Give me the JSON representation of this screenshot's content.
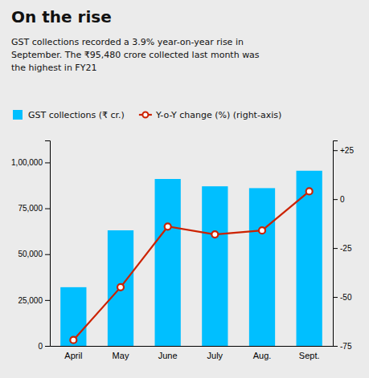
{
  "chart_data": {
    "type": "bar",
    "title": "On the rise",
    "subtitle": "GST collections recorded a 3.9% year-on-year rise in\nSeptember. The ₹95,480 crore collected last month was\nthe highest in FY21",
    "categories": [
      "April",
      "May",
      "June",
      "July",
      "Aug.",
      "Sept."
    ],
    "series": [
      {
        "name": "GST collections (₹ cr.)",
        "type": "bar",
        "color": "#00bfff",
        "values": [
          32000,
          63000,
          91000,
          87000,
          86000,
          95480
        ]
      },
      {
        "name": "Y-o-Y change (%) (right-axis)",
        "type": "line",
        "axis": "y2",
        "color": "#cc2200",
        "marker": "circle",
        "values": [
          -72,
          -45,
          -14,
          -18,
          -16,
          4
        ]
      }
    ],
    "ylim": [
      0,
      112000
    ],
    "yticks": [
      0,
      {
        "value": 25000,
        "label": "25,000"
      },
      {
        "value": 50000,
        "label": "50,000"
      },
      {
        "value": 75000,
        "label": "75,000"
      },
      {
        "value": 100000,
        "label": "1,00,000"
      }
    ],
    "y2lim": [
      -75,
      30
    ],
    "y2ticks": [
      -75,
      -50,
      -25,
      0,
      {
        "value": 25,
        "label": "+25"
      }
    ],
    "grid": false,
    "legend": "top"
  }
}
